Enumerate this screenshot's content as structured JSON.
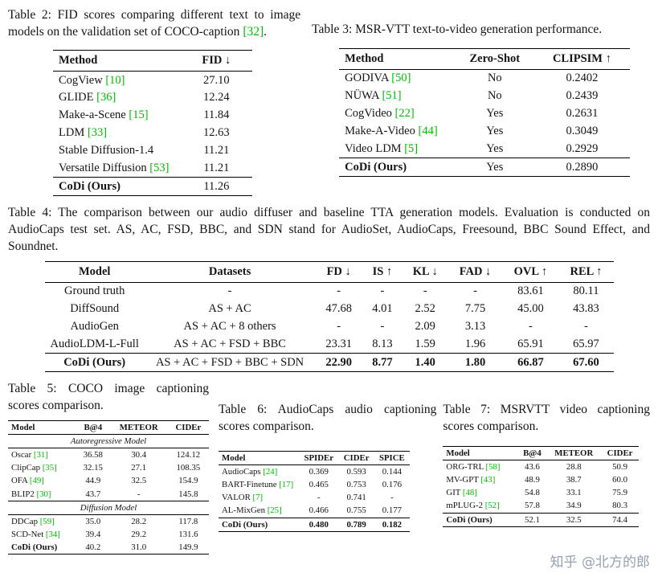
{
  "page": {
    "background": "#ffffff",
    "text_color": "#141414",
    "citation_color": "#00bb00",
    "rule_color": "#000000"
  },
  "watermark": {
    "text": "知乎 @北方的郎"
  },
  "captions": {
    "table2": [
      {
        "t": "Table 2: FID scores comparing different text to image models on the validation set of COCO-caption "
      },
      {
        "t": "[32]",
        "c": true
      },
      {
        "t": "."
      }
    ],
    "table3": [
      {
        "t": "Table 3: MSR-VTT text-to-video generation performance."
      }
    ],
    "table4": [
      {
        "t": "Table 4: The comparison between our audio diffuser and baseline TTA generation models. Evaluation is conducted on AudioCaps test set. AS, AC, FSD, BBC, and SDN stand for AudioSet, AudioCaps, Freesound, BBC Sound Effect, and Soundnet."
      }
    ],
    "table5": [
      {
        "t": "Table 5: COCO image captioning scores comparison."
      }
    ],
    "table6": [
      {
        "t": "Table 6: AudioCaps audio captioning scores comparison."
      }
    ],
    "table7": [
      {
        "t": "Table 7: MSRVTT video captioning scores comparison."
      }
    ]
  },
  "tables": {
    "table2": {
      "columns": [
        {
          "label": "Method",
          "align": "left"
        },
        {
          "label": "FID ↓",
          "align": "center"
        }
      ],
      "rows": [
        {
          "cells": [
            {
              "t": "CogView",
              "cite": "[10]"
            },
            {
              "t": "27.10"
            }
          ]
        },
        {
          "cells": [
            {
              "t": "GLIDE",
              "cite": "[36]"
            },
            {
              "t": "12.24"
            }
          ]
        },
        {
          "cells": [
            {
              "t": "Make-a-Scene",
              "cite": "[15]"
            },
            {
              "t": "11.84"
            }
          ]
        },
        {
          "cells": [
            {
              "t": "LDM",
              "cite": "[33]"
            },
            {
              "t": "12.63"
            }
          ]
        },
        {
          "cells": [
            {
              "t": "Stable Diffusion-1.4"
            },
            {
              "t": "11.21"
            }
          ]
        },
        {
          "cells": [
            {
              "t": "Versatile Diffusion",
              "cite": "[53]"
            },
            {
              "t": "11.21"
            }
          ]
        },
        {
          "rule": true,
          "cells": [
            {
              "t": "CoDi (Ours)",
              "b": true
            },
            {
              "t": "11.26"
            }
          ]
        }
      ]
    },
    "table3": {
      "columns": [
        {
          "label": "Method",
          "align": "left"
        },
        {
          "label": "Zero-Shot",
          "align": "center"
        },
        {
          "label": "CLIPSIM ↑",
          "align": "center"
        }
      ],
      "rows": [
        {
          "cells": [
            {
              "t": "GODIVA",
              "cite": "[50]"
            },
            {
              "t": "No"
            },
            {
              "t": "0.2402"
            }
          ]
        },
        {
          "cells": [
            {
              "t": "NÜWA",
              "cite": "[51]"
            },
            {
              "t": "No"
            },
            {
              "t": "0.2439"
            }
          ]
        },
        {
          "cells": [
            {
              "t": "CogVideo",
              "cite": "[22]"
            },
            {
              "t": "Yes"
            },
            {
              "t": "0.2631"
            }
          ]
        },
        {
          "cells": [
            {
              "t": "Make-A-Video",
              "cite": "[44]"
            },
            {
              "t": "Yes"
            },
            {
              "t": "0.3049"
            }
          ]
        },
        {
          "cells": [
            {
              "t": "Video LDM",
              "cite": "[5]"
            },
            {
              "t": "Yes"
            },
            {
              "t": "0.2929"
            }
          ]
        },
        {
          "rule": true,
          "cells": [
            {
              "t": "CoDi (Ours)",
              "b": true
            },
            {
              "t": "Yes"
            },
            {
              "t": "0.2890"
            }
          ]
        }
      ]
    },
    "table4": {
      "columns": [
        {
          "label": "Model",
          "align": "center"
        },
        {
          "label": "Datasets",
          "align": "center"
        },
        {
          "label": "FD ↓",
          "align": "center"
        },
        {
          "label": "IS ↑",
          "align": "center"
        },
        {
          "label": "KL ↓",
          "align": "center"
        },
        {
          "label": "FAD ↓",
          "align": "center"
        },
        {
          "label": "OVL ↑",
          "align": "center"
        },
        {
          "label": "REL ↑",
          "align": "center"
        }
      ],
      "rows": [
        {
          "cells": [
            {
              "t": "Ground truth"
            },
            {
              "t": "-"
            },
            {
              "t": "-"
            },
            {
              "t": "-"
            },
            {
              "t": "-"
            },
            {
              "t": "-"
            },
            {
              "t": "83.61"
            },
            {
              "t": "80.11"
            }
          ]
        },
        {
          "cells": [
            {
              "t": "DiffSound"
            },
            {
              "t": "AS + AC"
            },
            {
              "t": "47.68"
            },
            {
              "t": "4.01"
            },
            {
              "t": "2.52"
            },
            {
              "t": "7.75"
            },
            {
              "t": "45.00"
            },
            {
              "t": "43.83"
            }
          ]
        },
        {
          "cells": [
            {
              "t": "AudioGen"
            },
            {
              "t": "AS + AC + 8 others"
            },
            {
              "t": "-"
            },
            {
              "t": "-"
            },
            {
              "t": "2.09"
            },
            {
              "t": "3.13"
            },
            {
              "t": "-"
            },
            {
              "t": "-"
            }
          ]
        },
        {
          "cells": [
            {
              "t": "AudioLDM-L-Full"
            },
            {
              "t": "AS + AC + FSD + BBC"
            },
            {
              "t": "23.31"
            },
            {
              "t": "8.13"
            },
            {
              "t": "1.59"
            },
            {
              "t": "1.96"
            },
            {
              "t": "65.91"
            },
            {
              "t": "65.97"
            }
          ]
        },
        {
          "rule": true,
          "cells": [
            {
              "t": "CoDi (Ours)",
              "b": true
            },
            {
              "t": "AS + AC + FSD + BBC + SDN"
            },
            {
              "t": "22.90",
              "b": true
            },
            {
              "t": "8.77",
              "b": true
            },
            {
              "t": "1.40",
              "b": true
            },
            {
              "t": "1.80",
              "b": true
            },
            {
              "t": "66.87",
              "b": true
            },
            {
              "t": "67.60",
              "b": true
            }
          ]
        }
      ]
    },
    "table5": {
      "columns": [
        {
          "label": "Model",
          "align": "left"
        },
        {
          "label": "B@4",
          "align": "center"
        },
        {
          "label": "METEOR",
          "align": "center"
        },
        {
          "label": "CIDEr",
          "align": "center"
        }
      ],
      "rows": [
        {
          "section": "Autoregressive Model"
        },
        {
          "cells": [
            {
              "t": "Oscar",
              "cite": "[31]"
            },
            {
              "t": "36.58"
            },
            {
              "t": "30.4"
            },
            {
              "t": "124.12"
            }
          ]
        },
        {
          "cells": [
            {
              "t": "ClipCap",
              "cite": "[35]"
            },
            {
              "t": "32.15"
            },
            {
              "t": "27.1"
            },
            {
              "t": "108.35"
            }
          ]
        },
        {
          "cells": [
            {
              "t": "OFA",
              "cite": "[49]"
            },
            {
              "t": "44.9"
            },
            {
              "t": "32.5"
            },
            {
              "t": "154.9"
            }
          ]
        },
        {
          "cells": [
            {
              "t": "BLIP2",
              "cite": "[30]"
            },
            {
              "t": "43.7"
            },
            {
              "t": "-"
            },
            {
              "t": "145.8"
            }
          ]
        },
        {
          "section": "Diffusion Model"
        },
        {
          "cells": [
            {
              "t": "DDCap",
              "cite": "[59]"
            },
            {
              "t": "35.0"
            },
            {
              "t": "28.2"
            },
            {
              "t": "117.8"
            }
          ]
        },
        {
          "cells": [
            {
              "t": "SCD-Net",
              "cite": "[34]"
            },
            {
              "t": "39.4"
            },
            {
              "t": "29.2"
            },
            {
              "t": "131.6"
            }
          ]
        },
        {
          "cells": [
            {
              "t": "CoDi (Ours)",
              "b": true
            },
            {
              "t": "40.2"
            },
            {
              "t": "31.0"
            },
            {
              "t": "149.9"
            }
          ]
        }
      ]
    },
    "table6": {
      "columns": [
        {
          "label": "Model",
          "align": "left"
        },
        {
          "label": "SPIDEr",
          "align": "center"
        },
        {
          "label": "CIDEr",
          "align": "center"
        },
        {
          "label": "SPICE",
          "align": "center"
        }
      ],
      "rows": [
        {
          "cells": [
            {
              "t": "AudioCaps",
              "cite": "[24]"
            },
            {
              "t": "0.369"
            },
            {
              "t": "0.593"
            },
            {
              "t": "0.144"
            }
          ]
        },
        {
          "cells": [
            {
              "t": "BART-Finetune",
              "cite": "[17]"
            },
            {
              "t": "0.465"
            },
            {
              "t": "0.753"
            },
            {
              "t": "0.176"
            }
          ]
        },
        {
          "cells": [
            {
              "t": "VALOR",
              "cite": "[7]"
            },
            {
              "t": "-"
            },
            {
              "t": "0.741"
            },
            {
              "t": "-"
            }
          ]
        },
        {
          "cells": [
            {
              "t": "AL-MixGen",
              "cite": "[25]"
            },
            {
              "t": "0.466"
            },
            {
              "t": "0.755"
            },
            {
              "t": "0.177"
            }
          ]
        },
        {
          "rule": true,
          "cells": [
            {
              "t": "CoDi (Ours)",
              "b": true
            },
            {
              "t": "0.480",
              "b": true
            },
            {
              "t": "0.789",
              "b": true
            },
            {
              "t": "0.182",
              "b": true
            }
          ]
        }
      ]
    },
    "table7": {
      "columns": [
        {
          "label": "Model",
          "align": "left"
        },
        {
          "label": "B@4",
          "align": "center"
        },
        {
          "label": "METEOR",
          "align": "center"
        },
        {
          "label": "CIDEr",
          "align": "center"
        }
      ],
      "rows": [
        {
          "cells": [
            {
              "t": "ORG-TRL",
              "cite": "[58]"
            },
            {
              "t": "43.6"
            },
            {
              "t": "28.8"
            },
            {
              "t": "50.9"
            }
          ]
        },
        {
          "cells": [
            {
              "t": "MV-GPT",
              "cite": "[43]"
            },
            {
              "t": "48.9"
            },
            {
              "t": "38.7"
            },
            {
              "t": "60.0"
            }
          ]
        },
        {
          "cells": [
            {
              "t": "GIT",
              "cite": "[48]"
            },
            {
              "t": "54.8"
            },
            {
              "t": "33.1"
            },
            {
              "t": "75.9"
            }
          ]
        },
        {
          "cells": [
            {
              "t": "mPLUG-2",
              "cite": "[52]"
            },
            {
              "t": "57.8"
            },
            {
              "t": "34.9"
            },
            {
              "t": "80.3"
            }
          ]
        },
        {
          "rule": true,
          "cells": [
            {
              "t": "CoDi (Ours)",
              "b": true
            },
            {
              "t": "52.1"
            },
            {
              "t": "32.5"
            },
            {
              "t": "74.4"
            }
          ]
        }
      ]
    }
  }
}
